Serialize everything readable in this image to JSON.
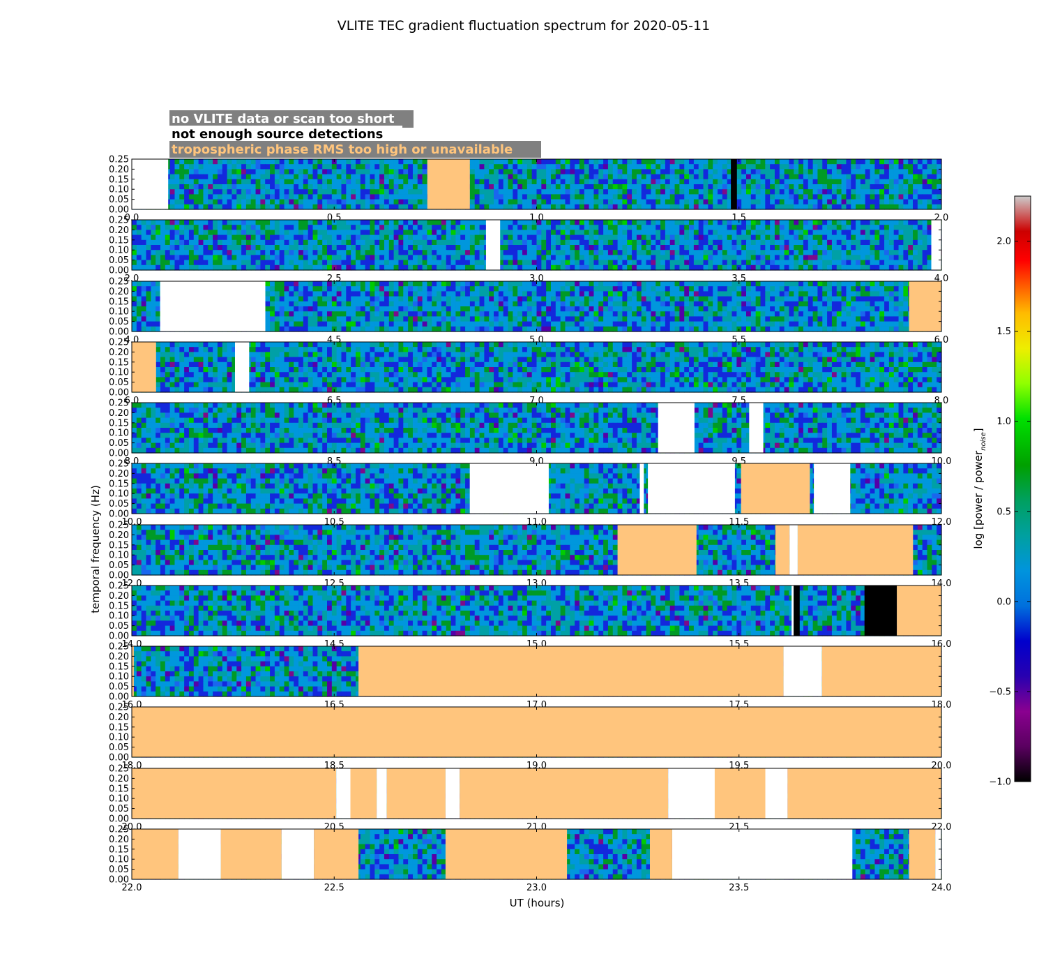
{
  "chart_data": {
    "type": "heatmap",
    "title": "VLITE TEC gradient fluctuation spectrum for 2020-05-11",
    "xlabel": "UT (hours)",
    "ylabel": "temporal frequency (Hz)",
    "colorbar_label": "log [power / power",
    "colorbar_label_sub": "noise",
    "colorbar_label_end": "]",
    "colorbar_range": [
      -1.0,
      2.25
    ],
    "colorbar_ticks": [
      "−1.0",
      "−0.5",
      "0.0",
      "0.5",
      "1.0",
      "1.5",
      "2.0"
    ],
    "colorbar_tick_values": [
      -1.0,
      -0.5,
      0.0,
      0.5,
      1.0,
      1.5,
      2.0
    ],
    "ylim": [
      0,
      0.25
    ],
    "y_ticks": [
      "0.00",
      "0.05",
      "0.10",
      "0.15",
      "0.20",
      "0.25"
    ],
    "legend": [
      {
        "label": "no VLITE data or scan too short",
        "color": "#ffffff"
      },
      {
        "label": "not enough source detections",
        "color": "#000000"
      },
      {
        "label": "tropospheric phase RMS too high or unavailable",
        "color": "#ffc57d"
      }
    ],
    "panels": [
      {
        "xlim": [
          0.0,
          2.0
        ],
        "x_ticks": [
          "0.0",
          "0.5",
          "1.0",
          "1.5",
          "2.0"
        ],
        "segments": [
          [
            "white",
            0.0,
            0.09
          ],
          [
            "orange",
            0.73,
            0.835
          ],
          [
            "black",
            1.48,
            1.495
          ]
        ]
      },
      {
        "xlim": [
          2.0,
          4.0
        ],
        "x_ticks": [
          "2.0",
          "2.5",
          "3.0",
          "3.5",
          "4.0"
        ],
        "segments": [
          [
            "white",
            2.875,
            2.91
          ],
          [
            "white",
            3.975,
            4.0
          ]
        ]
      },
      {
        "xlim": [
          4.0,
          6.0
        ],
        "x_ticks": [
          "4.0",
          "4.5",
          "5.0",
          "5.5",
          "6.0"
        ],
        "segments": [
          [
            "white",
            4.07,
            4.33
          ],
          [
            "orange",
            5.92,
            6.0
          ]
        ]
      },
      {
        "xlim": [
          6.0,
          8.0
        ],
        "x_ticks": [
          "6.0",
          "6.5",
          "7.0",
          "7.5",
          "8.0"
        ],
        "segments": [
          [
            "orange",
            6.0,
            6.06
          ],
          [
            "white",
            6.255,
            6.29
          ]
        ]
      },
      {
        "xlim": [
          8.0,
          10.0
        ],
        "x_ticks": [
          "8.0",
          "8.5",
          "9.0",
          "9.5",
          "10.0"
        ],
        "segments": [
          [
            "white",
            9.3,
            9.39
          ],
          [
            "white",
            9.525,
            9.56
          ]
        ]
      },
      {
        "xlim": [
          10.0,
          12.0
        ],
        "x_ticks": [
          "10.0",
          "10.5",
          "11.0",
          "11.5",
          "12.0"
        ],
        "segments": [
          [
            "white",
            10.835,
            11.03
          ],
          [
            "white",
            11.255,
            11.265
          ],
          [
            "white",
            11.275,
            11.49
          ],
          [
            "orange",
            11.505,
            11.675
          ],
          [
            "white",
            11.685,
            11.775
          ]
        ]
      },
      {
        "xlim": [
          12.0,
          14.0
        ],
        "x_ticks": [
          "12.0",
          "12.5",
          "13.0",
          "13.5",
          "14.0"
        ],
        "segments": [
          [
            "orange",
            13.2,
            13.395
          ],
          [
            "orange",
            13.59,
            13.625
          ],
          [
            "white",
            13.625,
            13.645
          ],
          [
            "orange",
            13.645,
            13.93
          ]
        ]
      },
      {
        "xlim": [
          14.0,
          16.0
        ],
        "x_ticks": [
          "14.0",
          "14.5",
          "15.0",
          "15.5",
          "16.0"
        ],
        "segments": [
          [
            "white",
            15.63,
            15.635
          ],
          [
            "black",
            15.635,
            15.65
          ],
          [
            "black",
            15.81,
            15.89
          ],
          [
            "orange",
            15.89,
            16.0
          ]
        ]
      },
      {
        "xlim": [
          16.0,
          18.0
        ],
        "x_ticks": [
          "16.0",
          "16.5",
          "17.0",
          "17.5",
          "18.0"
        ],
        "segments": [
          [
            "orange",
            16.0,
            16.005
          ],
          [
            "orange",
            16.56,
            17.61
          ],
          [
            "white",
            17.61,
            17.705
          ],
          [
            "orange",
            17.705,
            18.0
          ]
        ]
      },
      {
        "xlim": [
          18.0,
          20.0
        ],
        "x_ticks": [
          "18.0",
          "18.5",
          "19.0",
          "19.5",
          "20.0"
        ],
        "segments": [
          [
            "orange",
            18.0,
            20.0
          ]
        ]
      },
      {
        "xlim": [
          20.0,
          22.0
        ],
        "x_ticks": [
          "20.0",
          "20.5",
          "21.0",
          "21.5",
          "22.0"
        ],
        "segments": [
          [
            "orange",
            20.0,
            20.505
          ],
          [
            "white",
            20.505,
            20.54
          ],
          [
            "orange",
            20.54,
            20.605
          ],
          [
            "white",
            20.605,
            20.63
          ],
          [
            "orange",
            20.63,
            20.775
          ],
          [
            "white",
            20.775,
            20.81
          ],
          [
            "orange",
            20.81,
            21.325
          ],
          [
            "white",
            21.325,
            21.44
          ],
          [
            "orange",
            21.44,
            21.565
          ],
          [
            "white",
            21.565,
            21.62
          ],
          [
            "orange",
            21.62,
            22.0
          ]
        ]
      },
      {
        "xlim": [
          22.0,
          24.0
        ],
        "x_ticks": [
          "22.0",
          "22.5",
          "23.0",
          "23.5",
          "24.0"
        ],
        "segments": [
          [
            "orange",
            22.0,
            22.115
          ],
          [
            "white",
            22.115,
            22.22
          ],
          [
            "orange",
            22.22,
            22.37
          ],
          [
            "white",
            22.37,
            22.45
          ],
          [
            "orange",
            22.45,
            22.56
          ],
          [
            "orange",
            22.775,
            23.075
          ],
          [
            "orange",
            23.28,
            23.335
          ],
          [
            "white",
            23.335,
            23.78
          ],
          [
            "orange",
            23.92,
            23.985
          ],
          [
            "white",
            23.985,
            24.0
          ]
        ]
      }
    ]
  }
}
